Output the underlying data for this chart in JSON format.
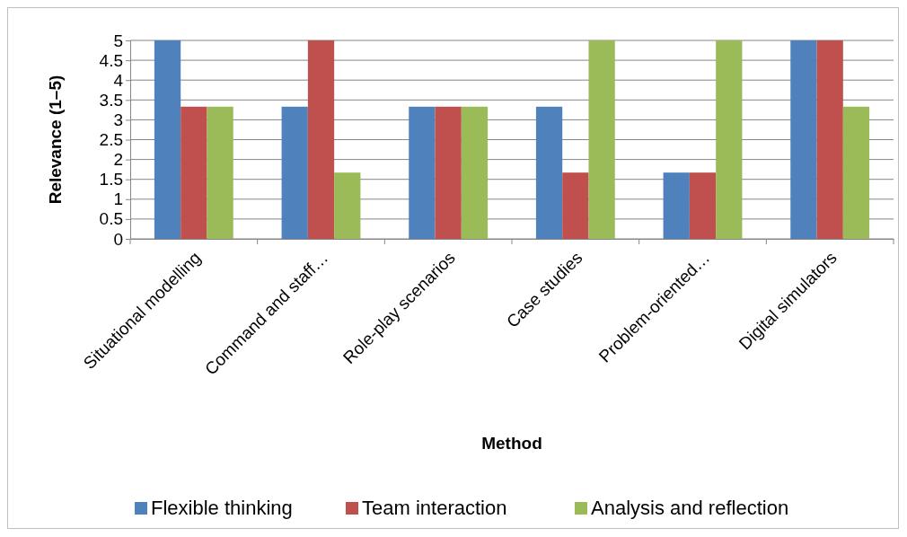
{
  "chart_data": {
    "type": "bar",
    "xlabel": "Method",
    "ylabel": "Relevance (1–5)",
    "categories": [
      "Situational modelling",
      "Command and staff…",
      "Role-play scenarios",
      "Case studies",
      "Problem-oriented…",
      "Digital simulators"
    ],
    "series": [
      {
        "name": "Flexible thinking",
        "color": "#4f81bd",
        "values": [
          5,
          3.33,
          3.33,
          3.33,
          1.67,
          5
        ]
      },
      {
        "name": "Team interaction",
        "color": "#c0504d",
        "values": [
          3.33,
          5,
          3.33,
          1.67,
          1.67,
          5
        ]
      },
      {
        "name": "Analysis and reflection",
        "color": "#9bbb59",
        "values": [
          3.33,
          1.67,
          3.33,
          5,
          5,
          3.33
        ]
      }
    ],
    "ylim": [
      0,
      5
    ],
    "yticks": [
      0,
      0.5,
      1,
      1.5,
      2,
      2.5,
      3,
      3.5,
      4,
      4.5,
      5
    ],
    "grid": "y",
    "legend": "bottom"
  }
}
